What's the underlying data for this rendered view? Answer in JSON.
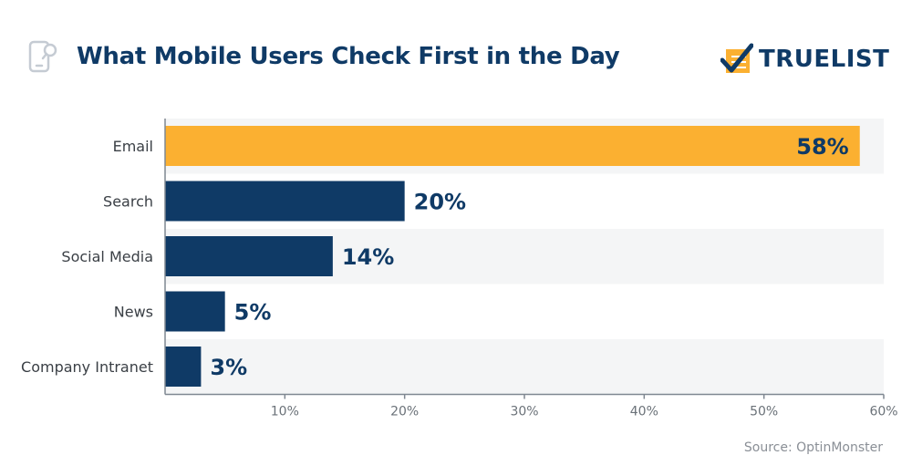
{
  "header": {
    "title": "What Mobile Users Check First in the Day",
    "title_icon": "phone-search-icon",
    "logo_text": "TRUELIST",
    "logo_icon": "checkmark-list-icon"
  },
  "footer": {
    "source": "Source: OptinMonster"
  },
  "colors": {
    "highlight": "#fbb031",
    "bar": "#0f3a66",
    "title": "#0f3a66",
    "band": "#f4f5f6",
    "axis": "#7f8791"
  },
  "chart_data": {
    "type": "bar",
    "orientation": "horizontal",
    "title": "What Mobile Users Check First in the Day",
    "xlabel": "",
    "ylabel": "",
    "categories": [
      "Email",
      "Search",
      "Social Media",
      "News",
      "Company Intranet"
    ],
    "values": [
      58,
      20,
      14,
      5,
      3
    ],
    "value_labels": [
      "58%",
      "20%",
      "14%",
      "5%",
      "3%"
    ],
    "xlim": [
      0,
      60
    ],
    "x_ticks": [
      10,
      20,
      30,
      40,
      50,
      60
    ],
    "x_tick_labels": [
      "10%",
      "20%",
      "30%",
      "40%",
      "50%",
      "60%"
    ],
    "highlight_index": 0,
    "grid": false,
    "legend": "none"
  }
}
